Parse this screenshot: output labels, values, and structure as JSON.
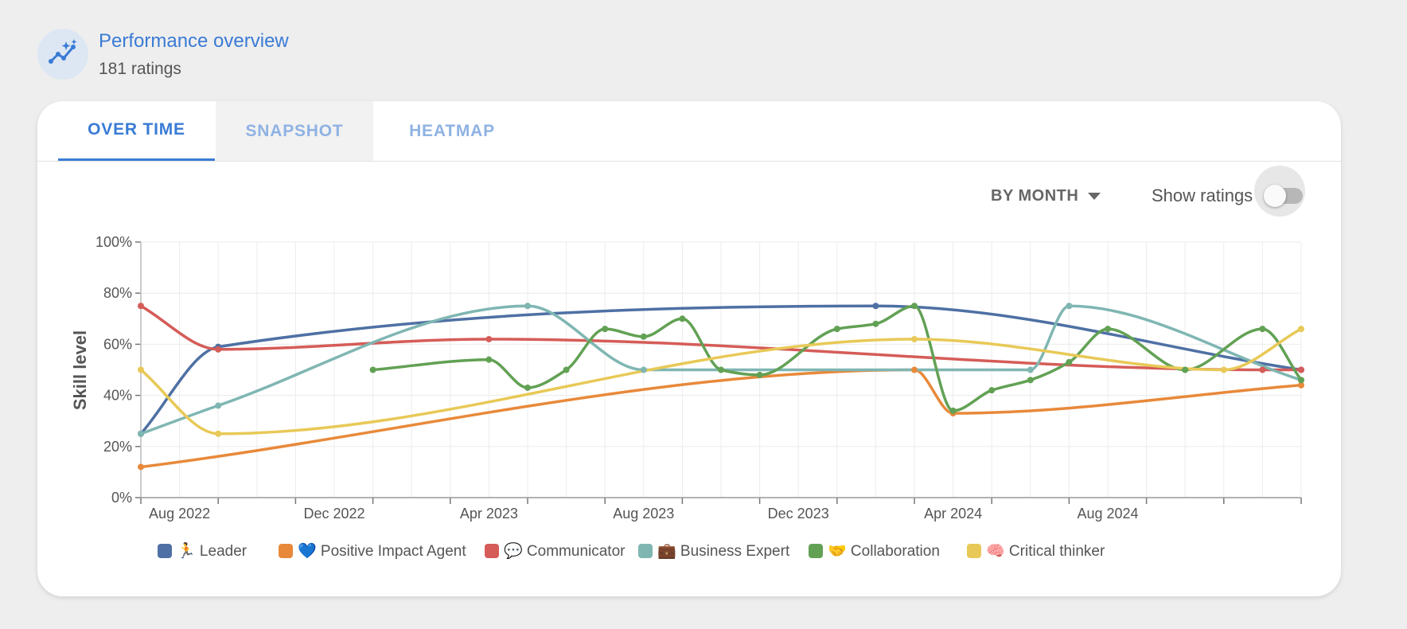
{
  "header": {
    "title": "Performance overview",
    "subtitle": "181 ratings",
    "icon": "trend-sparkle-icon"
  },
  "tabs": [
    {
      "label": "OVER TIME",
      "state": "active"
    },
    {
      "label": "SNAPSHOT",
      "state": "inactive"
    },
    {
      "label": "HEATMAP",
      "state": "inactive"
    }
  ],
  "controls": {
    "period_label": "BY MONTH",
    "show_ratings_label": "Show ratings",
    "show_ratings_on": false
  },
  "colors": {
    "accent": "#3a7bd5",
    "leader": "#4e70a4",
    "positive_impact_agent": "#e8893a",
    "communicator": "#d55c58",
    "business_expert": "#7fb6b2",
    "collaboration": "#62a154",
    "critical_thinker": "#e8c957"
  },
  "chart_data": {
    "type": "line",
    "title": "",
    "xlabel": "",
    "ylabel": "Skill level",
    "ylim": [
      0,
      100
    ],
    "yticks": [
      "0%",
      "20%",
      "40%",
      "60%",
      "80%",
      "100%"
    ],
    "x_range": [
      "2022-07",
      "2025-01"
    ],
    "xtick_labels": [
      {
        "month": "2022-08",
        "label": "Aug 2022"
      },
      {
        "month": "2022-12",
        "label": "Dec 2022"
      },
      {
        "month": "2023-04",
        "label": "Apr 2023"
      },
      {
        "month": "2023-08",
        "label": "Aug 2023"
      },
      {
        "month": "2023-12",
        "label": "Dec 2023"
      },
      {
        "month": "2024-04",
        "label": "Apr 2024"
      },
      {
        "month": "2024-08",
        "label": "Aug 2024"
      }
    ],
    "grid": true,
    "legend_position": "bottom",
    "series": [
      {
        "name": "🏃 Leader",
        "color": "#4e70a4",
        "points": [
          [
            "2022-07",
            25
          ],
          [
            "2022-09",
            59
          ],
          [
            "2024-02",
            75
          ],
          [
            "2025-01",
            50
          ]
        ]
      },
      {
        "name": "💙 Positive Impact Agent",
        "color": "#e8893a",
        "points": [
          [
            "2022-07",
            12
          ],
          [
            "2024-03",
            50
          ],
          [
            "2024-04",
            33
          ],
          [
            "2025-01",
            44
          ]
        ]
      },
      {
        "name": "💬 Communicator",
        "color": "#d55c58",
        "points": [
          [
            "2022-07",
            75
          ],
          [
            "2022-09",
            58
          ],
          [
            "2023-04",
            62
          ],
          [
            "2024-12",
            50
          ],
          [
            "2025-01",
            50
          ]
        ]
      },
      {
        "name": "💼 Business Expert",
        "color": "#7fb6b2",
        "points": [
          [
            "2022-07",
            25
          ],
          [
            "2022-09",
            36
          ],
          [
            "2023-05",
            75
          ],
          [
            "2023-08",
            50
          ],
          [
            "2024-06",
            50
          ],
          [
            "2024-07",
            75
          ],
          [
            "2025-01",
            46
          ]
        ]
      },
      {
        "name": "🤝 Collaboration",
        "color": "#62a154",
        "points": [
          [
            "2023-01",
            50
          ],
          [
            "2023-04",
            54
          ],
          [
            "2023-05",
            43
          ],
          [
            "2023-06",
            50
          ],
          [
            "2023-07",
            66
          ],
          [
            "2023-08",
            63
          ],
          [
            "2023-09",
            70
          ],
          [
            "2023-10",
            50
          ],
          [
            "2023-11",
            48
          ],
          [
            "2024-01",
            66
          ],
          [
            "2024-02",
            68
          ],
          [
            "2024-03",
            75
          ],
          [
            "2024-04",
            34
          ],
          [
            "2024-05",
            42
          ],
          [
            "2024-06",
            46
          ],
          [
            "2024-07",
            53
          ],
          [
            "2024-08",
            66
          ],
          [
            "2024-10",
            50
          ],
          [
            "2024-12",
            66
          ],
          [
            "2025-01",
            46
          ]
        ]
      },
      {
        "name": "🧠 Critical thinker",
        "color": "#e8c957",
        "points": [
          [
            "2022-07",
            50
          ],
          [
            "2022-09",
            25
          ],
          [
            "2024-03",
            62
          ],
          [
            "2024-11",
            50
          ],
          [
            "2025-01",
            66
          ]
        ]
      }
    ]
  }
}
